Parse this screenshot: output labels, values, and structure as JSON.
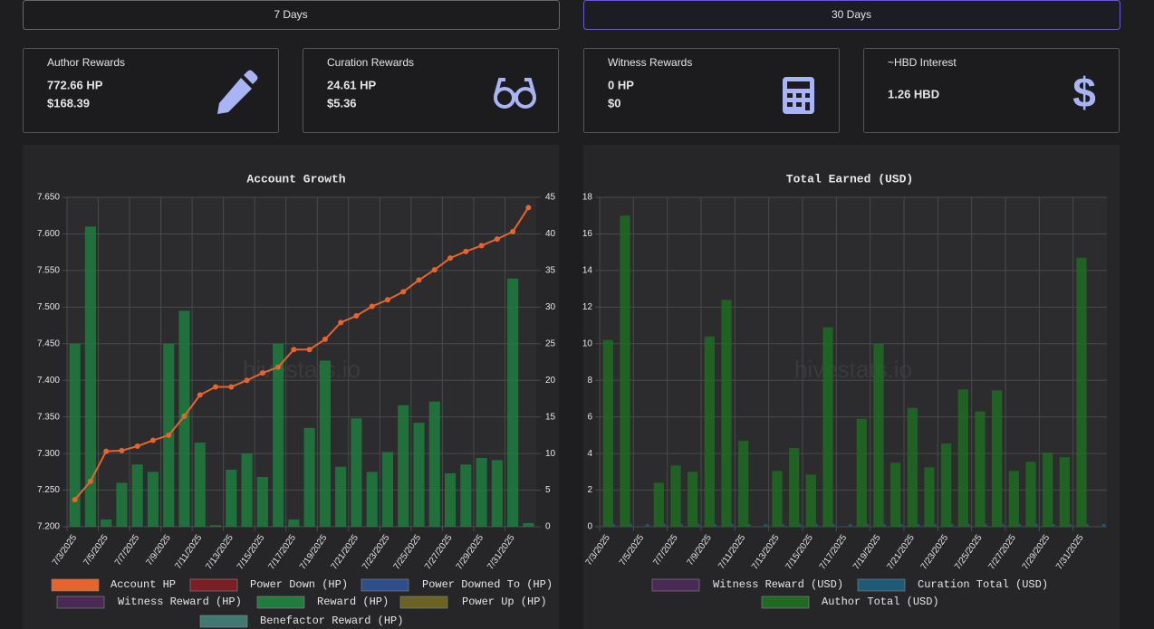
{
  "tabs": [
    "7 Days",
    "30 Days"
  ],
  "cards": [
    {
      "title": "Author Rewards",
      "lines": [
        "772.66 HP",
        "$168.39"
      ]
    },
    {
      "title": "Curation Rewards",
      "lines": [
        "24.61 HP",
        "$5.36"
      ]
    },
    {
      "title": "Witness Rewards",
      "lines": [
        "0 HP",
        "$0"
      ]
    },
    {
      "title": "~HBD Interest",
      "lines": [
        "1.26 HBD"
      ]
    }
  ],
  "chart_data": [
    {
      "type": "combo",
      "title": "Account Growth",
      "watermark": "hivestats.io",
      "categories": [
        "7/3/2025",
        null,
        "7/5/2025",
        null,
        "7/7/2025",
        null,
        "7/9/2025",
        null,
        "7/11/2025",
        null,
        "7/13/2025",
        null,
        "7/15/2025",
        null,
        "7/17/2025",
        null,
        "7/19/2025",
        null,
        "7/21/2025",
        null,
        "7/23/2025",
        null,
        "7/25/2025",
        null,
        "7/27/2025",
        null,
        "7/29/2025",
        null,
        "7/31/2025",
        null
      ],
      "ylim": [
        7.2,
        7.65
      ],
      "yticks": [
        {
          "value": 7.2,
          "label": "7.200"
        },
        {
          "value": 7.25,
          "label": "7.250"
        },
        {
          "value": 7.3,
          "label": "7.300"
        },
        {
          "value": 7.35,
          "label": "7.350"
        },
        {
          "value": 7.4,
          "label": "7.400"
        },
        {
          "value": 7.45,
          "label": "7.450"
        },
        {
          "value": 7.5,
          "label": "7.500"
        },
        {
          "value": 7.55,
          "label": "7.550"
        },
        {
          "value": 7.6,
          "label": "7.600"
        },
        {
          "value": 7.65,
          "label": "7.650"
        }
      ],
      "y2lim": [
        0,
        45
      ],
      "y2ticks": [
        0,
        5,
        10,
        15,
        20,
        25,
        30,
        35,
        40,
        45
      ],
      "grid": true,
      "series": [
        {
          "name": "Account HP",
          "color": "#e8642c",
          "type": "line",
          "values": [
            7.237,
            7.262,
            7.303,
            7.304,
            7.31,
            7.318,
            7.325,
            7.351,
            7.38,
            7.391,
            7.391,
            7.4,
            7.41,
            7.418,
            7.442,
            7.442,
            7.456,
            7.479,
            7.488,
            7.501,
            7.51,
            7.521,
            7.537,
            7.551,
            7.567,
            7.576,
            7.584,
            7.593,
            7.603,
            7.636
          ]
        },
        {
          "name": "Power Down (HP)",
          "color": "#7a1f24"
        },
        {
          "name": "Power Downed To (HP)",
          "color": "#2f4f8a"
        },
        {
          "name": "Witness Reward (HP)",
          "color": "#4a2a55"
        },
        {
          "name": "Reward (HP)",
          "color": "#1f7d3d",
          "type": "bar",
          "axis": "y2",
          "values": [
            25,
            41,
            1,
            6,
            8.5,
            7.5,
            25,
            29.5,
            11.5,
            0.2,
            7.8,
            10,
            6.8,
            25,
            1,
            13.5,
            22.7,
            8.2,
            14.8,
            7.5,
            10.2,
            16.6,
            14.2,
            17.1,
            7.3,
            8.5,
            9.4,
            9.1,
            33.9,
            0.5
          ]
        },
        {
          "name": "Power Up (HP)",
          "color": "#6b6420"
        },
        {
          "name": "Benefactor Reward (HP)",
          "color": "#3f7a70"
        }
      ]
    },
    {
      "type": "bar",
      "title": "Total Earned (USD)",
      "watermark": "hivestats.io",
      "categories": [
        "7/3/2025",
        null,
        "7/5/2025",
        null,
        "7/7/2025",
        null,
        "7/9/2025",
        null,
        "7/11/2025",
        null,
        "7/13/2025",
        null,
        "7/15/2025",
        null,
        "7/17/2025",
        null,
        "7/19/2025",
        null,
        "7/21/2025",
        null,
        "7/23/2025",
        null,
        "7/25/2025",
        null,
        "7/27/2025",
        null,
        "7/29/2025",
        null,
        "7/31/2025",
        null
      ],
      "ylim": [
        0,
        18
      ],
      "yticks": [
        0,
        2,
        4,
        6,
        8,
        10,
        12,
        14,
        16,
        18
      ],
      "grid": true,
      "series": [
        {
          "name": "Witness Reward (USD)",
          "color": "#4a2a55"
        },
        {
          "name": "Curation Total (USD)",
          "color": "#1f5a78",
          "values": [
            0.15,
            0.15,
            0.15,
            0.15,
            0.15,
            0.15,
            0.15,
            0.15,
            0.15,
            0.15,
            0.15,
            0.15,
            0.15,
            0.15,
            0.15,
            0.15,
            0.15,
            0.15,
            0.15,
            0.15,
            0.15,
            0.15,
            0.15,
            0.15,
            0.15,
            0.15,
            0.15,
            0.15,
            0.15,
            0.15
          ]
        },
        {
          "name": "Author Total (USD)",
          "color": "#1e6b22",
          "values": [
            10.2,
            17,
            0,
            2.4,
            3.35,
            3,
            10.4,
            12.4,
            4.7,
            0,
            3.05,
            4.3,
            2.85,
            10.9,
            0,
            5.9,
            10,
            3.5,
            6.5,
            3.25,
            4.55,
            7.5,
            6.3,
            7.45,
            3.05,
            3.55,
            4.05,
            3.8,
            14.7,
            0
          ]
        }
      ]
    }
  ]
}
